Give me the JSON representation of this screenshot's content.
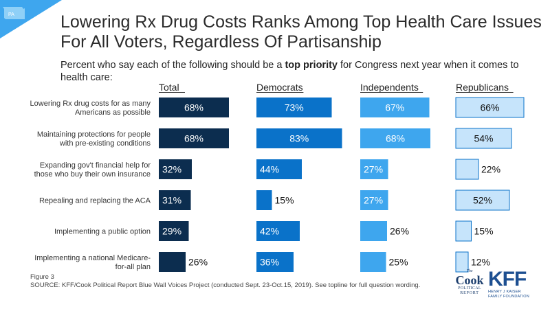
{
  "state_badge": "PA",
  "title": "Lowering Rx Drug Costs Ranks Among Top Health Care Issues For All Voters, Regardless Of Partisanship",
  "subtitle_pre": "Percent who say each of the following should be a ",
  "subtitle_bold": "top priority",
  "subtitle_post": " for Congress next year when it comes to health care:",
  "footer": {
    "figure": "Figure 3",
    "source": "SOURCE: KFF/Cook Political Report Blue Wall Voices Project (conducted Sept. 23-Oct.15, 2019). See topline for full question wording."
  },
  "logos": {
    "cook_the": "The",
    "cook_name": "Cook",
    "cook_line1": "POLITICAL",
    "cook_line2": "REPORT",
    "kff_name": "KFF",
    "kff_line1": "HENRY J KAISER",
    "kff_line2": "FAMILY FOUNDATION"
  },
  "chart_data": {
    "type": "bar",
    "orientation": "horizontal",
    "categories": [
      "Lowering Rx drug costs for as many Americans as possible",
      "Maintaining protections for people with pre-existing conditions",
      "Expanding gov't financial help for those who buy their own insurance",
      "Repealing and replacing the ACA",
      "Implementing a public option",
      "Implementing a national Medicare-for-all plan"
    ],
    "series": [
      {
        "name": "Total",
        "values": [
          68,
          68,
          32,
          31,
          29,
          26
        ],
        "color": "#0c2d4f"
      },
      {
        "name": "Democrats",
        "values": [
          73,
          83,
          44,
          15,
          42,
          36
        ],
        "color": "#0a72c9"
      },
      {
        "name": "Independents",
        "values": [
          67,
          68,
          27,
          27,
          26,
          25
        ],
        "color": "#3ea6ee"
      },
      {
        "name": "Republicans",
        "values": [
          66,
          54,
          22,
          52,
          15,
          12
        ],
        "color": "#c6e4fb"
      }
    ],
    "value_suffix": "%",
    "xlim": [
      0,
      100
    ]
  }
}
